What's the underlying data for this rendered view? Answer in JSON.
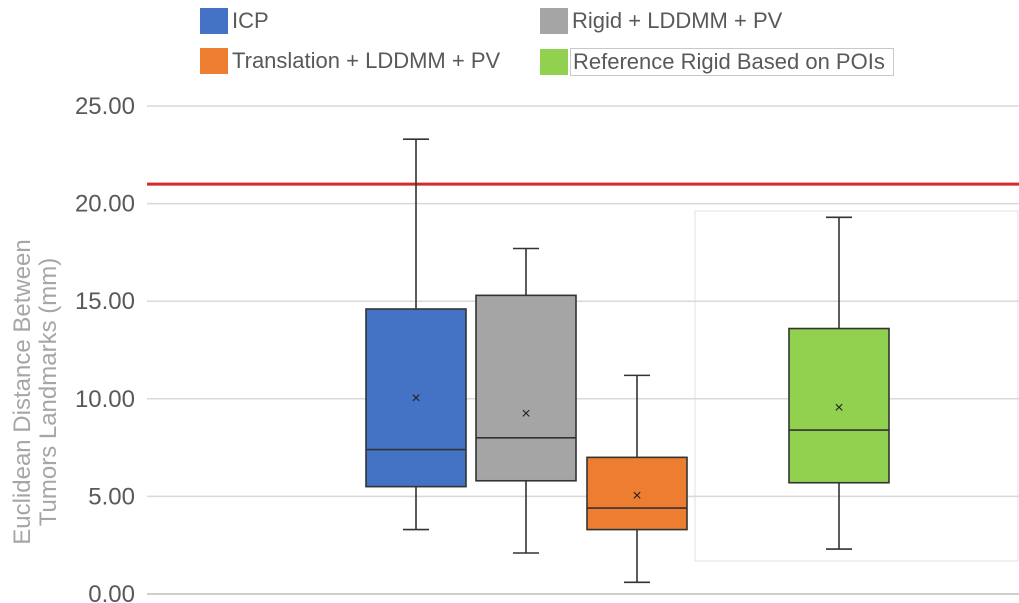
{
  "chart_data": {
    "type": "box",
    "ylabel": [
      "Euclidean Distance Between",
      "Tumors Landmarks (mm)"
    ],
    "ylim": [
      0,
      25
    ],
    "yticks": [
      "0.00",
      "5.00",
      "10.00",
      "15.00",
      "20.00",
      "25.00"
    ],
    "grid": true,
    "legend_position": "top",
    "reference_line": {
      "value": 21,
      "color": "#d42a2a"
    },
    "series": [
      {
        "name": "ICP",
        "color": "#4472c4",
        "min": 3.3,
        "q1": 5.5,
        "median": 7.4,
        "q3": 14.6,
        "max": 23.3,
        "mean": 10.1
      },
      {
        "name": "Rigid + LDDMM + PV",
        "color": "#a5a5a5",
        "min": 2.1,
        "q1": 5.8,
        "median": 8.0,
        "q3": 15.3,
        "max": 17.7,
        "mean": 9.3
      },
      {
        "name": "Translation + LDDMM + PV",
        "color": "#ed7d31",
        "min": 0.6,
        "q1": 3.3,
        "median": 4.4,
        "q3": 7.0,
        "max": 11.2,
        "mean": 5.1
      },
      {
        "name": "Reference Rigid Based on POIs",
        "color": "#92d050",
        "min": 2.3,
        "q1": 5.7,
        "median": 8.4,
        "q3": 13.6,
        "max": 19.3,
        "mean": 9.6
      }
    ]
  }
}
